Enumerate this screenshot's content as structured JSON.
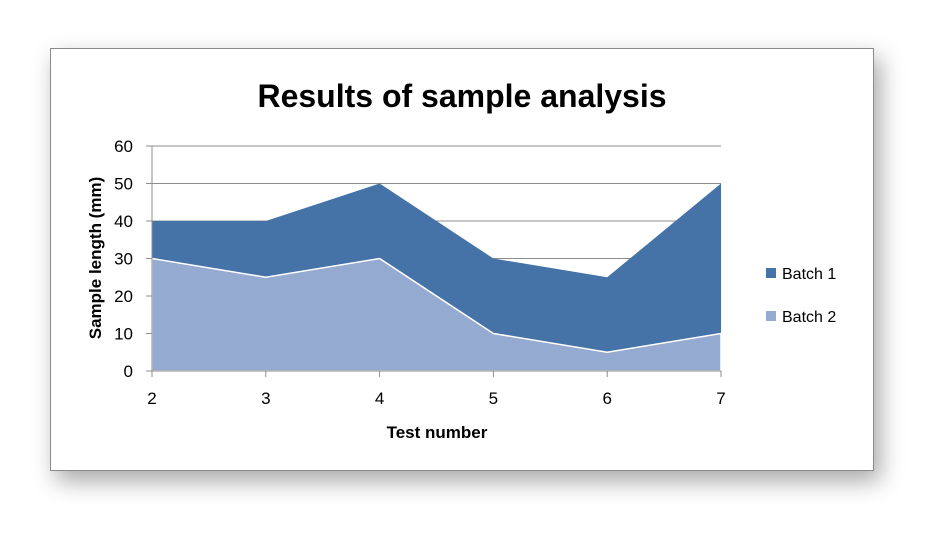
{
  "chart_data": {
    "type": "area",
    "title": "Results of sample analysis",
    "xlabel": "Test number",
    "ylabel": "Sample length (mm)",
    "categories": [
      "2",
      "3",
      "4",
      "5",
      "6",
      "7"
    ],
    "ylim": [
      0,
      60
    ],
    "yticks": [
      "0",
      "10",
      "20",
      "30",
      "40",
      "50",
      "60"
    ],
    "grid": true,
    "legend_position": "right",
    "series": [
      {
        "name": "Batch 1",
        "values": [
          40,
          40,
          50,
          30,
          25,
          50
        ],
        "color": "#4573A7"
      },
      {
        "name": "Batch 2",
        "values": [
          30,
          25,
          30,
          10,
          5,
          10
        ],
        "color": "#95AAD0"
      }
    ]
  }
}
